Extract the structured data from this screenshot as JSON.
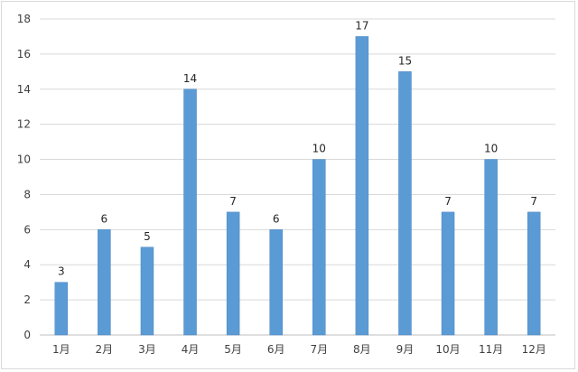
{
  "chart_data": {
    "type": "bar",
    "categories": [
      "1月",
      "2月",
      "3月",
      "4月",
      "5月",
      "6月",
      "7月",
      "8月",
      "9月",
      "10月",
      "11月",
      "12月"
    ],
    "values": [
      3,
      6,
      5,
      14,
      7,
      6,
      10,
      17,
      15,
      7,
      10,
      7
    ],
    "title": "",
    "xlabel": "",
    "ylabel": "",
    "ylim": [
      0,
      18
    ],
    "yticks": [
      0,
      2,
      4,
      6,
      8,
      10,
      12,
      14,
      16,
      18
    ],
    "grid": true,
    "legend": "none",
    "data_labels": true,
    "colors": {
      "bar": "#5b9bd5",
      "bar_edge": "#4a86c0",
      "grid": "#d9d9d9",
      "axis": "#bfbfbf",
      "text": "#404040"
    }
  }
}
